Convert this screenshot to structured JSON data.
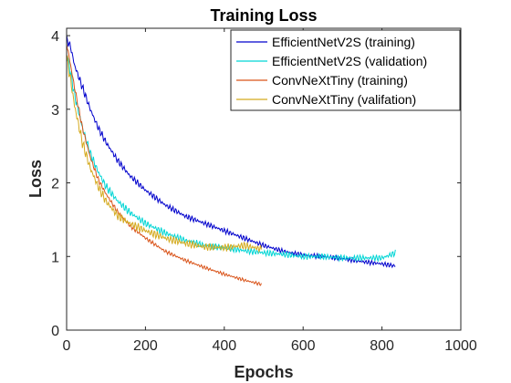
{
  "chart_data": {
    "type": "line",
    "title": "Training Loss",
    "xlabel": "Epochs",
    "ylabel": "Loss",
    "xlim": [
      0,
      1000
    ],
    "ylim": [
      0,
      4.1
    ],
    "xticks": [
      0,
      200,
      400,
      600,
      800,
      1000
    ],
    "yticks": [
      0,
      1,
      2,
      3,
      4
    ],
    "grid": false,
    "legend_position": "top-right",
    "series": [
      {
        "name": "EfficientNetV2S (training)",
        "color": "#0000cc",
        "x": [
          0,
          10,
          20,
          40,
          60,
          80,
          100,
          130,
          160,
          200,
          250,
          300,
          350,
          400,
          450,
          500,
          550,
          600,
          650,
          700,
          750,
          800,
          835
        ],
        "y": [
          3.95,
          3.85,
          3.6,
          3.3,
          3.0,
          2.75,
          2.55,
          2.3,
          2.1,
          1.9,
          1.7,
          1.55,
          1.45,
          1.35,
          1.25,
          1.15,
          1.07,
          1.02,
          1.0,
          0.97,
          0.93,
          0.9,
          0.87
        ]
      },
      {
        "name": "EfficientNetV2S (validation)",
        "color": "#00d5d5",
        "x": [
          0,
          10,
          20,
          40,
          60,
          80,
          100,
          130,
          160,
          200,
          250,
          300,
          350,
          400,
          450,
          500,
          550,
          600,
          650,
          700,
          750,
          800,
          835
        ],
        "y": [
          3.75,
          3.5,
          3.2,
          2.75,
          2.4,
          2.15,
          1.95,
          1.75,
          1.6,
          1.45,
          1.32,
          1.22,
          1.15,
          1.12,
          1.08,
          1.05,
          1.03,
          1.0,
          1.0,
          0.98,
          0.98,
          0.98,
          1.05
        ]
      },
      {
        "name": "ConvNeXtTiny (training)",
        "color": "#d95319",
        "x": [
          0,
          10,
          20,
          40,
          60,
          80,
          100,
          130,
          160,
          200,
          250,
          300,
          350,
          400,
          450,
          495
        ],
        "y": [
          3.9,
          3.6,
          3.3,
          2.75,
          2.35,
          2.05,
          1.85,
          1.6,
          1.42,
          1.25,
          1.07,
          0.95,
          0.85,
          0.76,
          0.68,
          0.62
        ]
      },
      {
        "name": "ConvNeXtTiny (valifation)",
        "color": "#d4aa1f",
        "x": [
          0,
          10,
          20,
          40,
          60,
          80,
          100,
          130,
          160,
          200,
          250,
          300,
          350,
          400,
          450,
          495
        ],
        "y": [
          3.7,
          3.4,
          3.05,
          2.55,
          2.2,
          1.95,
          1.75,
          1.55,
          1.45,
          1.35,
          1.25,
          1.18,
          1.13,
          1.12,
          1.15,
          1.1
        ]
      }
    ]
  }
}
